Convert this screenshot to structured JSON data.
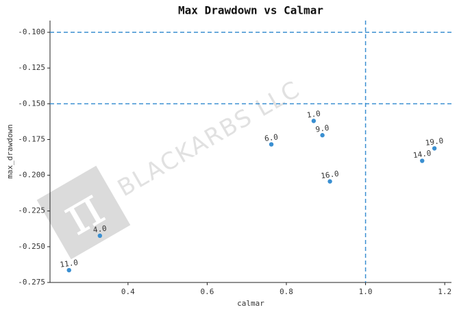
{
  "chart_data": {
    "type": "scatter",
    "title": "Max Drawdown vs Calmar",
    "xlabel": "calmar",
    "ylabel": "max_drawdown",
    "watermark": "BLACKARBS LLC",
    "watermark_logo": "π",
    "x": [
      0.251,
      0.329,
      0.762,
      0.869,
      0.891,
      0.91,
      1.143,
      1.174
    ],
    "series": [
      {
        "color": "#3a8fd1",
        "values": [
          -0.2664,
          -0.2423,
          -0.1784,
          -0.162,
          -0.172,
          -0.2043,
          -0.1899,
          -0.1812
        ],
        "labels": [
          "11.0",
          "4.0",
          "6.0",
          "1.0",
          "9.0",
          "16.0",
          "14.0",
          "19.0"
        ]
      }
    ],
    "xlim": [
      0.203,
      1.217
    ],
    "ylim": [
      -0.275,
      -0.0918
    ],
    "xticks": [
      0.4,
      0.6,
      0.8,
      {
        "value": 1.0,
        "label": "1.0"
      },
      1.2
    ],
    "yticks": [
      {
        "value": -0.1,
        "label": "-0.100"
      },
      {
        "value": -0.125,
        "label": "-0.125"
      },
      {
        "value": -0.15,
        "label": "-0.150"
      },
      {
        "value": -0.175,
        "label": "-0.175"
      },
      {
        "value": -0.2,
        "label": "-0.200"
      },
      {
        "value": -0.225,
        "label": "-0.225"
      },
      {
        "value": -0.25,
        "label": "-0.250"
      },
      {
        "value": -0.275,
        "label": "-0.275"
      }
    ],
    "hlines": [
      -0.1,
      -0.15
    ],
    "vlines": [
      1.0
    ],
    "line_color": "#3a8fd1"
  }
}
